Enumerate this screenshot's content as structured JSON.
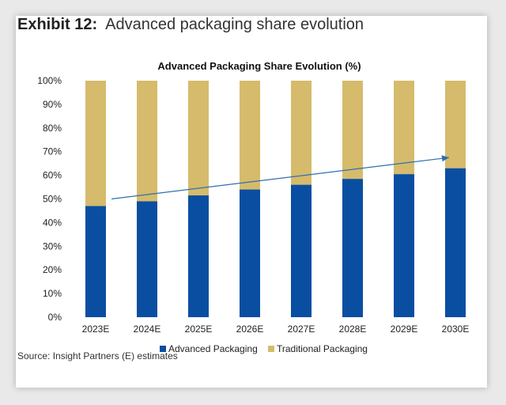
{
  "exhibit": {
    "number": "Exhibit 12:",
    "title": "Advanced packaging share evolution"
  },
  "source": "Source: Insight Partners (E) estimates",
  "colors": {
    "advanced": "#0a4ea2",
    "traditional": "#d5bb6b",
    "arrow": "#2e6fb0"
  },
  "chart_data": {
    "type": "bar",
    "stacked": true,
    "title": "Advanced Packaging Share Evolution (%)",
    "xlabel": "",
    "ylabel": "",
    "ylim": [
      0,
      100
    ],
    "yticks": [
      "0%",
      "10%",
      "20%",
      "30%",
      "40%",
      "50%",
      "60%",
      "70%",
      "80%",
      "90%",
      "100%"
    ],
    "categories": [
      "2023E",
      "2024E",
      "2025E",
      "2026E",
      "2027E",
      "2028E",
      "2029E",
      "2030E"
    ],
    "series": [
      {
        "name": "Advanced Packaging",
        "values": [
          47,
          49,
          51.5,
          54,
          56,
          58.5,
          60.5,
          63
        ]
      },
      {
        "name": "Traditional Packaging",
        "values": [
          53,
          51,
          48.5,
          46,
          44,
          41.5,
          39.5,
          37
        ]
      }
    ],
    "trend_arrow": {
      "from": {
        "category": "2023E",
        "y": 50
      },
      "to": {
        "category": "2030E",
        "y": 67.5
      }
    },
    "legend_position": "bottom-center",
    "grid": false
  }
}
